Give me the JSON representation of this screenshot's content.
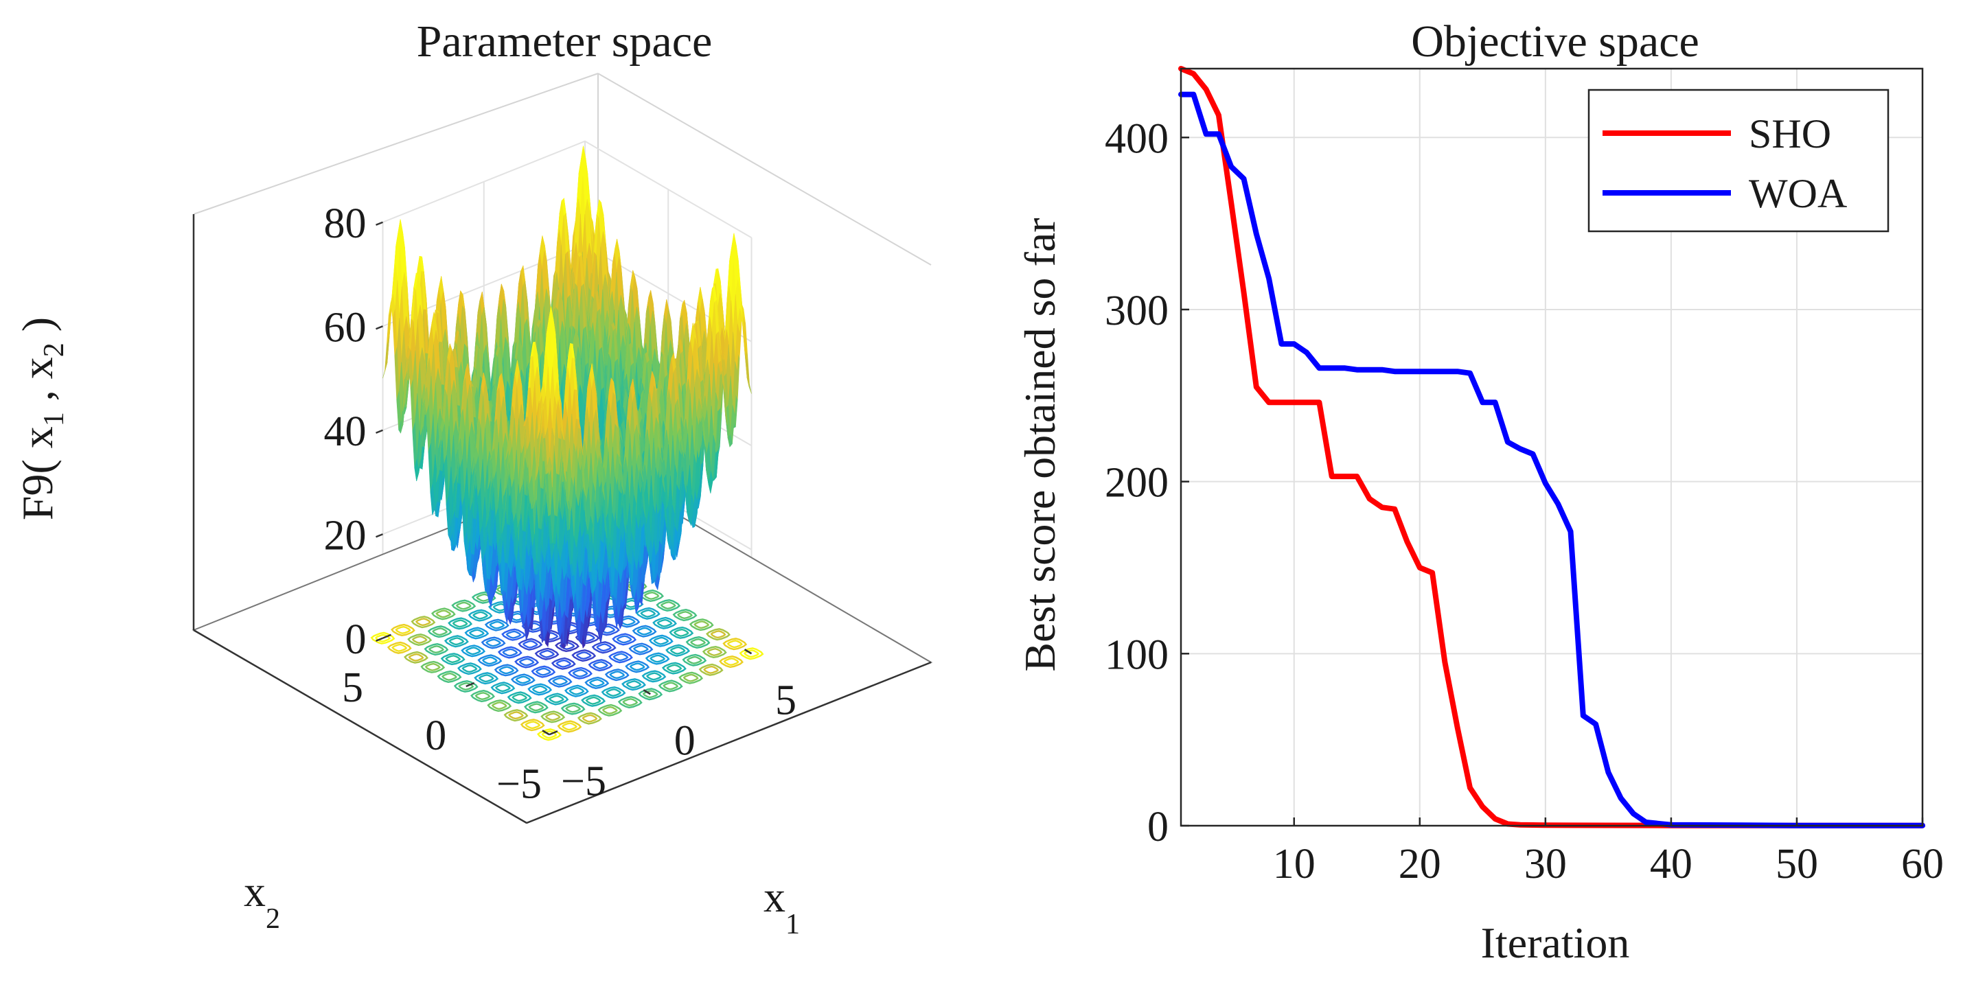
{
  "chart_data": [
    {
      "type": "surface",
      "title": "Parameter space",
      "xlabel": "x",
      "xlabel_sub": "1",
      "ylabel": "x",
      "ylabel_sub": "2",
      "zlabel_parts": [
        "F9( x",
        "1",
        " , x",
        "2",
        " )"
      ],
      "x_ticks": [
        "−5",
        "0",
        "5"
      ],
      "y_ticks": [
        "−5",
        "0",
        "5"
      ],
      "z_ticks": [
        "0",
        "20",
        "40",
        "60",
        "80"
      ],
      "xlim": [
        -5,
        5
      ],
      "ylim": [
        -5,
        5
      ],
      "zlim": [
        0,
        80
      ],
      "grid": true,
      "colormap": "parula",
      "contour_on_floor": true
    },
    {
      "type": "line",
      "title": "Objective space",
      "xlabel": "Iteration",
      "ylabel": "Best score obtained so far",
      "xlim": [
        1,
        60
      ],
      "ylim": [
        0,
        440
      ],
      "x_ticks": [
        "10",
        "20",
        "30",
        "40",
        "50",
        "60"
      ],
      "y_ticks": [
        "0",
        "100",
        "200",
        "300",
        "400"
      ],
      "grid": true,
      "legend_position": "top-right",
      "series": [
        {
          "name": "SHO",
          "color": "#ff0000",
          "x": [
            1,
            2,
            3,
            4,
            5,
            6,
            7,
            8,
            9,
            10,
            11,
            12,
            13,
            14,
            15,
            16,
            17,
            18,
            19,
            20,
            21,
            22,
            23,
            24,
            25,
            26,
            27,
            28,
            29,
            30,
            35,
            40,
            50,
            60
          ],
          "values": [
            440,
            437,
            428,
            413,
            362,
            310,
            255,
            246,
            246,
            246,
            246,
            246,
            203,
            203,
            203,
            190,
            185,
            184,
            165,
            150,
            147,
            95,
            57,
            22,
            11,
            4,
            1,
            0.5,
            0.4,
            0.3,
            0.2,
            0.1,
            0.1,
            0.1
          ]
        },
        {
          "name": "WOA",
          "color": "#0000ff",
          "x": [
            1,
            2,
            3,
            4,
            5,
            6,
            7,
            8,
            9,
            10,
            11,
            12,
            13,
            14,
            15,
            16,
            17,
            18,
            19,
            20,
            21,
            22,
            23,
            24,
            25,
            26,
            27,
            28,
            29,
            30,
            31,
            32,
            33,
            34,
            35,
            36,
            37,
            38,
            40,
            50,
            60
          ],
          "values": [
            425,
            425,
            402,
            402,
            383,
            376,
            344,
            318,
            280,
            280,
            275,
            266,
            266,
            266,
            265,
            265,
            265,
            264,
            264,
            264,
            264,
            264,
            264,
            263,
            246,
            246,
            223,
            219,
            216,
            199,
            187,
            171,
            64,
            59,
            31,
            16,
            7,
            2,
            0.5,
            0.1,
            0.1
          ]
        }
      ]
    }
  ]
}
